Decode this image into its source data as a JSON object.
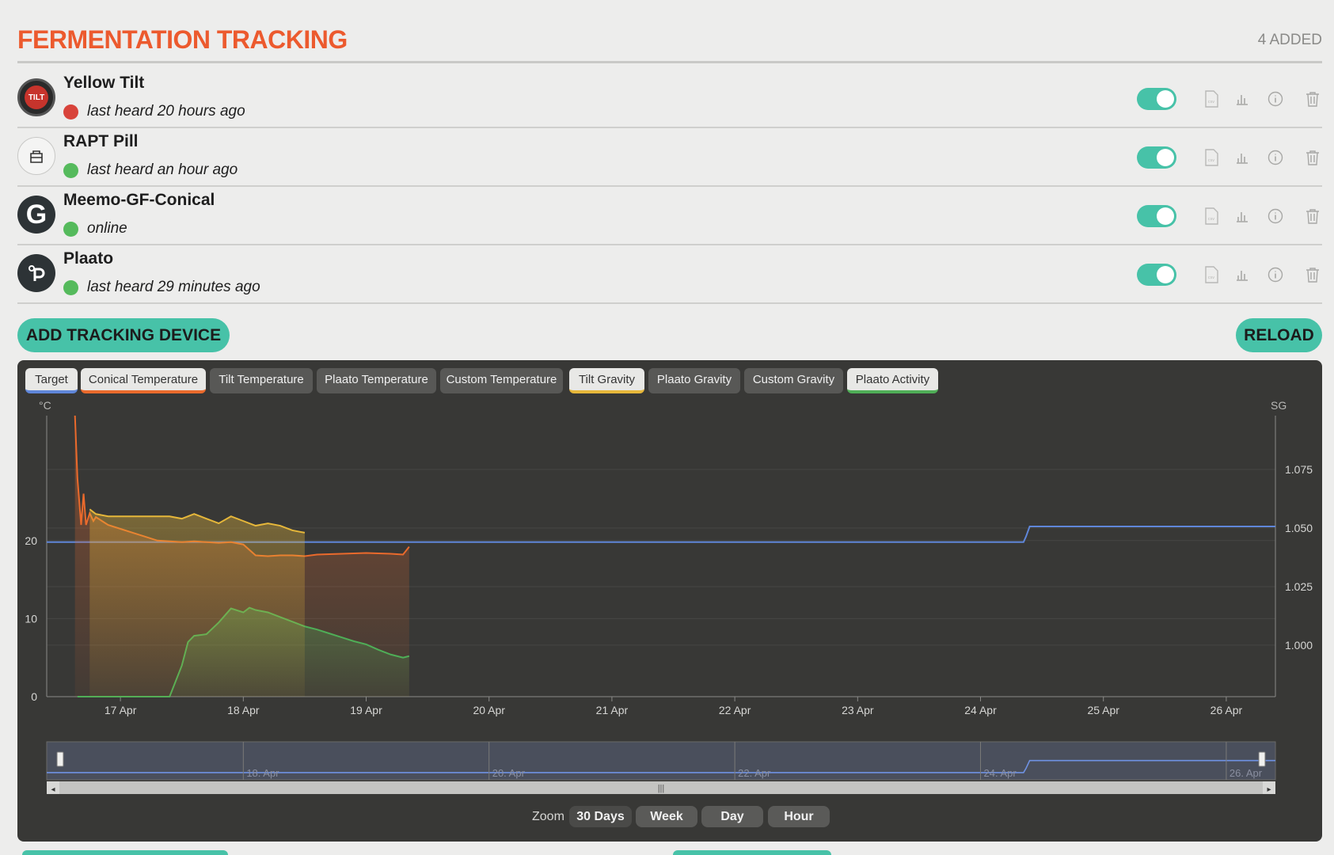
{
  "header": {
    "title": "FERMENTATION TRACKING",
    "added": "4 ADDED"
  },
  "devices": [
    {
      "name": "Yellow Tilt",
      "status": "last heard 20 hours ago",
      "status_color": "#d8433a",
      "icon": "tilt-logo-icon",
      "enabled": true
    },
    {
      "name": "RAPT Pill",
      "status": "last heard an hour ago",
      "status_color": "#55ba5c",
      "icon": "rapt-pill-icon",
      "enabled": true
    },
    {
      "name": "Meemo-GF-Conical",
      "status": "online",
      "status_color": "#55ba5c",
      "icon": "grainfather-g-icon",
      "enabled": true
    },
    {
      "name": "Plaato",
      "status": "last heard 29 minutes ago",
      "status_color": "#55ba5c",
      "icon": "plaato-p-icon",
      "enabled": true
    }
  ],
  "device_actions": [
    "csv-export-icon",
    "chart-icon",
    "info-icon",
    "trash-icon"
  ],
  "actions": {
    "add": "ADD TRACKING DEVICE",
    "reload": "RELOAD"
  },
  "series_tabs": [
    {
      "label": "Target",
      "active": true,
      "color": "#5f86d9"
    },
    {
      "label": "Conical Temperature",
      "active": true,
      "color": "#ea6a2c"
    },
    {
      "label": "Tilt Temperature",
      "active": false,
      "color": ""
    },
    {
      "label": "Plaato Temperature",
      "active": false,
      "color": ""
    },
    {
      "label": "Custom Temperature",
      "active": false,
      "color": ""
    },
    {
      "label": "Tilt Gravity",
      "active": true,
      "color": "#e6b73a"
    },
    {
      "label": "Plaato Gravity",
      "active": false,
      "color": ""
    },
    {
      "label": "Custom Gravity",
      "active": false,
      "color": ""
    },
    {
      "label": "Plaato Activity",
      "active": true,
      "color": "#4fae57"
    }
  ],
  "zoom": {
    "label": "Zoom",
    "options": [
      "30 Days",
      "Week",
      "Day",
      "Hour"
    ],
    "selected": "30 Days"
  },
  "colors": {
    "accent": "#47c2a8",
    "title": "#ec5a2e",
    "panel": "#383836"
  },
  "chart_data": {
    "type": "line",
    "left_axis_label": "°C",
    "right_axis_label": "SG",
    "left_ticks": [
      0,
      10,
      20
    ],
    "right_ticks": [
      "1.000",
      "1.025",
      "1.050",
      "1.075"
    ],
    "x_ticks": [
      "17 Apr",
      "18 Apr",
      "19 Apr",
      "20 Apr",
      "21 Apr",
      "22 Apr",
      "23 Apr",
      "24 Apr",
      "25 Apr",
      "26 Apr"
    ],
    "navigator_ticks": [
      "18. Apr",
      "20. Apr",
      "22. Apr",
      "24. Apr",
      "26. Apr"
    ],
    "x_range": [
      16.4,
      26.4
    ],
    "left_range": [
      0,
      36
    ],
    "right_range": [
      0.978,
      1.098
    ],
    "series": [
      {
        "name": "Target",
        "axis": "left",
        "color": "#5f86d9",
        "x": [
          16.4,
          24.35,
          24.37,
          24.4,
          26.4
        ],
        "y": [
          19.8,
          19.8,
          20.5,
          21.8,
          21.8
        ]
      },
      {
        "name": "Conical Temperature",
        "axis": "left",
        "color": "#ea6a2c",
        "area": true,
        "x": [
          16.63,
          16.65,
          16.68,
          16.7,
          16.72,
          16.75,
          16.78,
          16.8,
          16.85,
          16.9,
          17.0,
          17.1,
          17.2,
          17.3,
          17.4,
          17.5,
          17.6,
          17.7,
          17.8,
          17.9,
          18.0,
          18.1,
          18.2,
          18.3,
          18.4,
          18.5,
          18.6,
          18.8,
          19.0,
          19.2,
          19.3,
          19.35
        ],
        "y": [
          36,
          28,
          22,
          26,
          22,
          23.5,
          22.5,
          23,
          22.5,
          22,
          21.5,
          21,
          20.5,
          20,
          19.9,
          19.8,
          19.9,
          19.8,
          19.7,
          19.8,
          19.5,
          18.1,
          18,
          18.1,
          18.1,
          18.0,
          18.2,
          18.3,
          18.4,
          18.3,
          18.2,
          19.2
        ]
      },
      {
        "name": "Plaato Activity",
        "axis": "left",
        "color": "#4fae57",
        "area": true,
        "x": [
          16.65,
          17.2,
          17.4,
          17.5,
          17.55,
          17.6,
          17.7,
          17.8,
          17.9,
          18.0,
          18.05,
          18.1,
          18.2,
          18.3,
          18.4,
          18.5,
          18.6,
          18.7,
          18.8,
          18.9,
          19.0,
          19.1,
          19.2,
          19.3,
          19.35
        ],
        "y": [
          0,
          0,
          0,
          4,
          7,
          7.8,
          8,
          9.5,
          11.3,
          10.8,
          11.4,
          11.1,
          10.8,
          10.2,
          9.6,
          9.0,
          8.6,
          8.1,
          7.6,
          7.1,
          6.7,
          6.0,
          5.4,
          5.0,
          5.2
        ]
      },
      {
        "name": "Tilt Gravity",
        "axis": "right",
        "color": "#e6b73a",
        "area": true,
        "x": [
          16.75,
          16.8,
          16.9,
          17.0,
          17.2,
          17.4,
          17.5,
          17.6,
          17.7,
          17.8,
          17.9,
          18.0,
          18.1,
          18.2,
          18.3,
          18.4,
          18.5
        ],
        "y": [
          1.058,
          1.056,
          1.055,
          1.055,
          1.055,
          1.055,
          1.054,
          1.056,
          1.054,
          1.052,
          1.055,
          1.053,
          1.051,
          1.052,
          1.051,
          1.049,
          1.048
        ]
      }
    ]
  }
}
